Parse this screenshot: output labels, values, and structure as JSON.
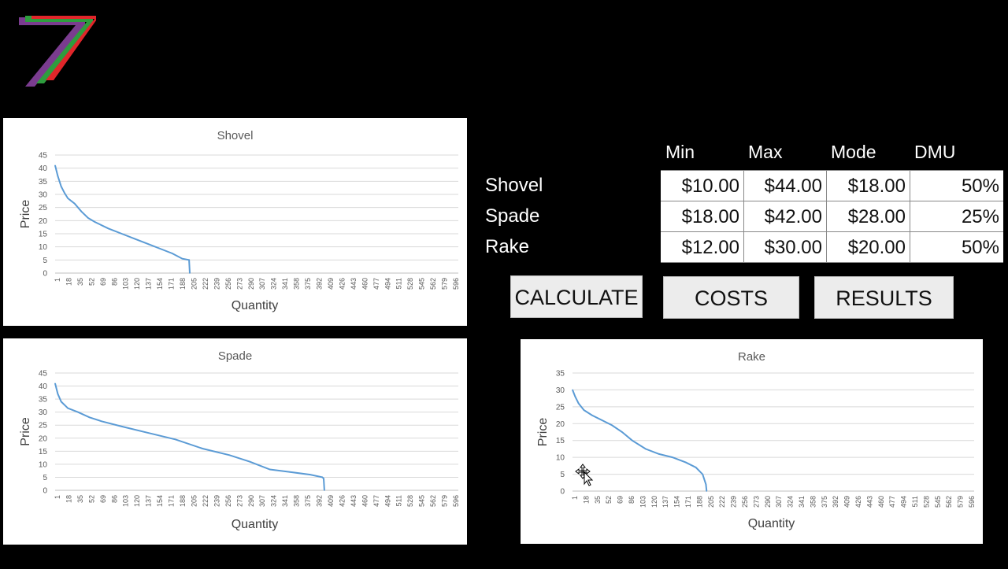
{
  "table": {
    "headers": [
      "Min",
      "Max",
      "Mode",
      "DMU"
    ],
    "rows": [
      {
        "label": "Shovel",
        "min": "$10.00",
        "max": "$44.00",
        "mode": "$18.00",
        "dmu": "50%"
      },
      {
        "label": "Spade",
        "min": "$18.00",
        "max": "$42.00",
        "mode": "$28.00",
        "dmu": "25%"
      },
      {
        "label": "Rake",
        "min": "$12.00",
        "max": "$30.00",
        "mode": "$20.00",
        "dmu": "50%"
      }
    ]
  },
  "buttons": {
    "calculate": "CALCULATE",
    "costs": "COSTS",
    "results": "RESULTS"
  },
  "colors": {
    "background": "#000000",
    "series": "#5b9bd5",
    "logo_red": "#e0262a",
    "logo_green": "#2e9d3e",
    "logo_purple": "#7a3c8f"
  },
  "chart_data": [
    {
      "type": "line",
      "title": "Shovel",
      "xlabel": "Quantity",
      "ylabel": "Price",
      "ylim": [
        0,
        45
      ],
      "yticks": [
        0,
        5,
        10,
        15,
        20,
        25,
        30,
        35,
        40,
        45
      ],
      "xlim": [
        1,
        600
      ],
      "x_categories": [
        "1",
        "18",
        "35",
        "52",
        "69",
        "86",
        "103",
        "120",
        "137",
        "154",
        "171",
        "188",
        "205",
        "222",
        "239",
        "256",
        "273",
        "290",
        "307",
        "324",
        "341",
        "358",
        "375",
        "392",
        "409",
        "426",
        "443",
        "460",
        "477",
        "494",
        "511",
        "528",
        "545",
        "562",
        "579",
        "596"
      ],
      "grid": true,
      "x": [
        1,
        5,
        10,
        15,
        20,
        30,
        40,
        50,
        60,
        80,
        100,
        120,
        140,
        160,
        175,
        190,
        200,
        201
      ],
      "y": [
        41,
        37,
        33,
        30.5,
        28.5,
        26.5,
        23.5,
        21,
        19.5,
        17,
        15,
        13,
        11,
        9,
        7.5,
        5.5,
        5,
        0
      ]
    },
    {
      "type": "line",
      "title": "Spade",
      "xlabel": "Quantity",
      "ylabel": "Price",
      "ylim": [
        0,
        45
      ],
      "yticks": [
        0,
        5,
        10,
        15,
        20,
        25,
        30,
        35,
        40,
        45
      ],
      "xlim": [
        1,
        600
      ],
      "x_categories": [
        "1",
        "18",
        "35",
        "52",
        "69",
        "86",
        "103",
        "120",
        "137",
        "154",
        "171",
        "188",
        "205",
        "222",
        "239",
        "256",
        "273",
        "290",
        "307",
        "324",
        "341",
        "358",
        "375",
        "392",
        "409",
        "426",
        "443",
        "460",
        "477",
        "494",
        "511",
        "528",
        "545",
        "562",
        "579",
        "596"
      ],
      "grid": true,
      "x": [
        1,
        5,
        10,
        20,
        35,
        52,
        70,
        100,
        140,
        180,
        220,
        260,
        290,
        320,
        350,
        380,
        398,
        400,
        401
      ],
      "y": [
        41,
        37,
        34,
        31.5,
        30,
        28,
        26.5,
        24.5,
        22,
        19.5,
        16,
        13.5,
        11,
        8,
        7,
        6,
        5,
        4.5,
        0
      ]
    },
    {
      "type": "line",
      "title": "Rake",
      "xlabel": "Quantity",
      "ylabel": "Price",
      "ylim": [
        0,
        35
      ],
      "yticks": [
        0,
        5,
        10,
        15,
        20,
        25,
        30,
        35
      ],
      "xlim": [
        1,
        600
      ],
      "x_categories": [
        "1",
        "18",
        "35",
        "52",
        "69",
        "86",
        "103",
        "120",
        "137",
        "154",
        "171",
        "188",
        "205",
        "222",
        "239",
        "256",
        "273",
        "290",
        "307",
        "324",
        "341",
        "358",
        "375",
        "392",
        "409",
        "426",
        "443",
        "460",
        "477",
        "494",
        "511",
        "528",
        "545",
        "562",
        "579",
        "596"
      ],
      "grid": true,
      "x": [
        1,
        5,
        10,
        18,
        30,
        45,
        60,
        75,
        90,
        110,
        130,
        150,
        170,
        185,
        195,
        200,
        201
      ],
      "y": [
        30,
        28,
        26,
        24,
        22.5,
        21,
        19.5,
        17.5,
        15,
        12.5,
        11,
        10,
        8.5,
        7,
        5,
        2,
        0
      ]
    }
  ]
}
